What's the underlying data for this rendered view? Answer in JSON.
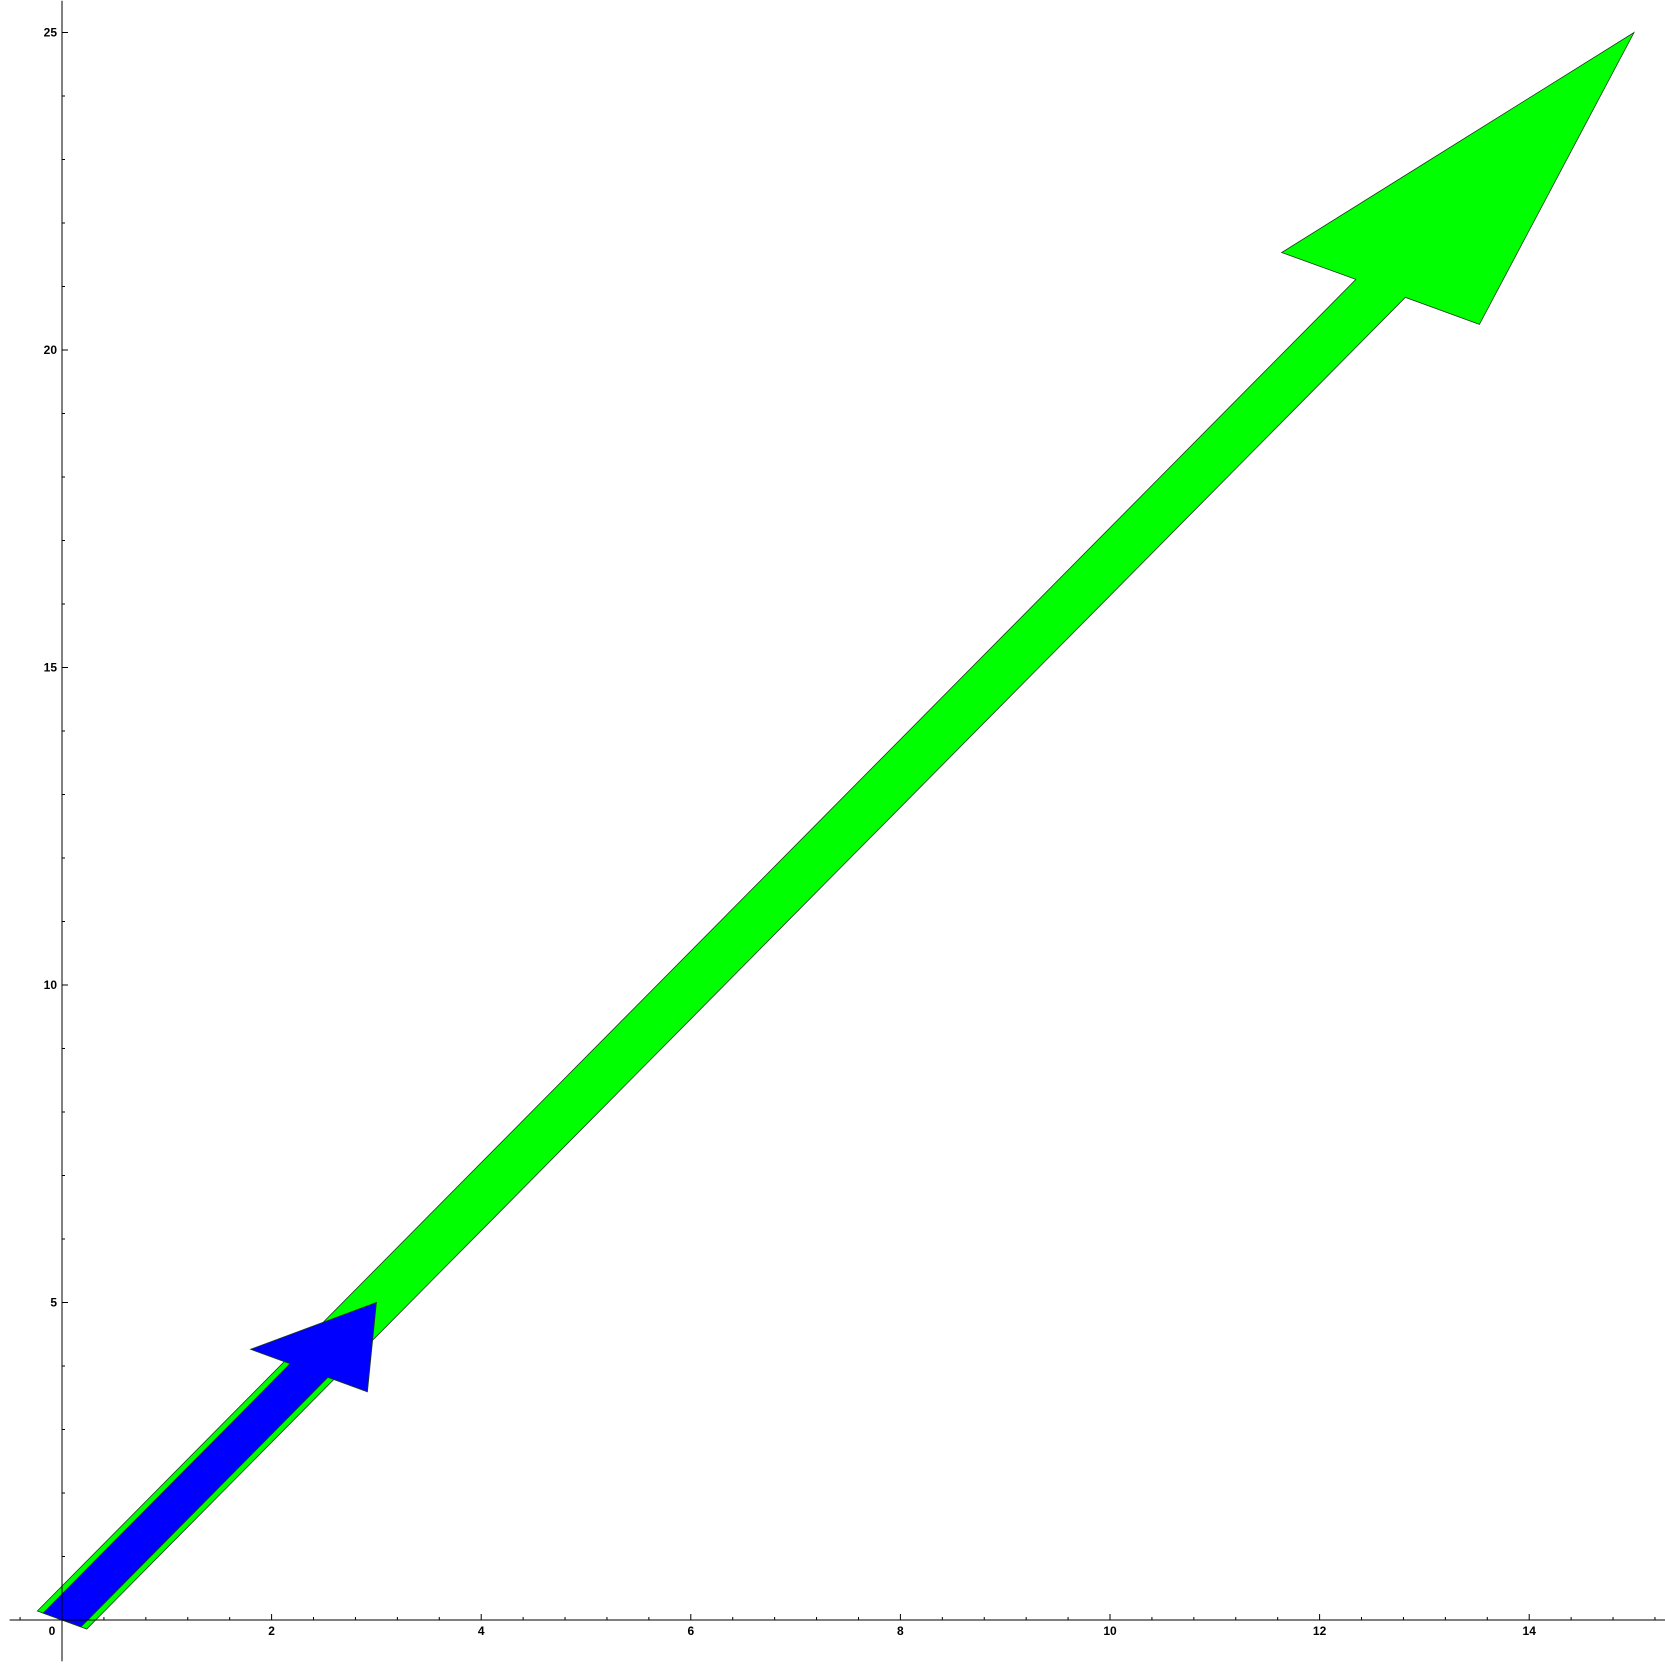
{
  "chart_data": {
    "type": "vector-plot",
    "title": "",
    "xlabel": "",
    "ylabel": "",
    "xlim": [
      -0.5,
      15.3
    ],
    "ylim": [
      -0.65,
      25.5
    ],
    "x_ticks": [
      0,
      2,
      4,
      6,
      8,
      10,
      12,
      14
    ],
    "x_tick_labels": [
      "0",
      "2",
      "4",
      "6",
      "8",
      "10",
      "12",
      "14"
    ],
    "x_minor_step": 0.4,
    "y_ticks": [
      0,
      5,
      10,
      15,
      20,
      25
    ],
    "y_tick_labels": [
      "0",
      "5",
      "10",
      "15",
      "20",
      "25"
    ],
    "y_minor_step": 1,
    "grid": false,
    "legend": "none",
    "series": [
      {
        "start": [
          0,
          0
        ],
        "end": [
          15,
          25
        ],
        "shaft_width": 0.55,
        "head_width": 2.2,
        "head_length": 4.7,
        "color": "#00ff00"
      },
      {
        "start": [
          0,
          0
        ],
        "end": [
          3,
          5
        ],
        "shaft_width": 0.42,
        "head_width": 1.3,
        "head_length": 1.25,
        "color": "#0000ff"
      }
    ]
  }
}
